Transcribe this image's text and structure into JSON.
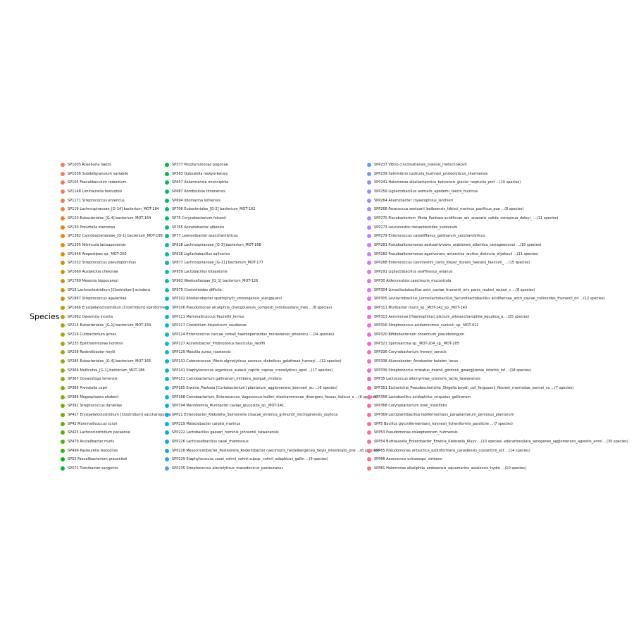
{
  "chart_data": {
    "type": "scatter",
    "legend": {
      "title": "Species",
      "placement": "left",
      "palette": {
        "type": "hue",
        "h": [
          15,
          375
        ],
        "c": 100,
        "l": 65
      },
      "columns": [
        [
          "SP1005 Roseburia faecis",
          "SP1036 Subdoligranulum variabile",
          "SP105 Faecalibaculum rodentium",
          "SP1148 Limihaurella testudinis",
          "SP1171 Streptococcus entericus",
          "SP119 Lachnospiraceae_[G-14] bacterium_MOT-184",
          "SP120 Eubacteriales_[G-4] bacterium_MOT-164",
          "SP130 Prevotella stercorea",
          "SP1382 Carnobacteriaceae_[G-1] bacterium_MOT-198",
          "SP1395 Nitrincola lacisaponensis",
          "SP1446 Atopostipes sp._MOT-200",
          "SP1532 Streptococcus pseudoporcinus",
          "SP1660 Austwickia chelonae",
          "SP1789 Mesonia hippocampi",
          "SP18 Lachnoclostridium [Clostridium] scindens",
          "SP1887 Streptococcus agalactiae",
          "SP1966 Erysipelatoclostridium [Clostridium] spiroforme",
          "SP1982 Desemzia incerta",
          "SP215 Eubacteriales_[G-1] bacterium_MOT-159",
          "SP216 Cutibacterium acnes",
          "SP233 Epilithonimonas hominis",
          "SP238 Rodentibacter heylii",
          "SP285 Eubacteriales_[G-4] bacterium_MOT-165",
          "SP366 Mollicutes_[G-1] bacterium_MOT-186",
          "SP367 Oceanotoga teriensis",
          "SP385 Prevotella copri",
          "SP386 Megasphaera elsdenii",
          "SP391 Streptococcus danieliae",
          "SP417 Erysipelatoclostridium [Clostridium] saccharogumia",
          "SP42 Mammaliicoccus sciuri",
          "SP425 Lachnoclostridium pacaense",
          "SP479 Acutalibacter muris",
          "SP496 Pasteurella testudinis",
          "SP52 Faecalibacterium prausnitzii",
          "SP572 Turicibacter sanguinis"
        ],
        [
          "SP577 Porphyromonas pogonae",
          "SP583 Dubosiella newyorkensis",
          "SP657 Akkermansia muciniphila",
          "SP687 Romboutsia timonensis",
          "SP694 Idiomarina loihiensis",
          "SP706 Eubacteriales_[G-2] bacterium_MOT-162",
          "SP75 Corynebacterium falsenii",
          "SP765 Acinetobacter albensis",
          "SP77 Lawsonibacter asaccharolyticus",
          "SP818 Lachnospiraceae_[G-3] bacterium_MOT-168",
          "SP826 Ligilactobacillus salivarius",
          "SP877 Lachnospiraceae_[G-11] bacterium_MOT-177",
          "SP959 Lactobacillus kitasatonis",
          "SP963 Weeksellaceae_[G_1] bacterium_MOT-126",
          "SP975 Clostridioides difficile",
          "SPP102 Rhodanobacter spathiphylli_umsongensis_xiangquanii",
          "SPP106 Pseudomonas alcaliphila_chengduensis_composti_indoloxydans_men ...(8 species)",
          "SPP111 Mammaliicoccus fleurettii_lentus",
          "SPP117 Clostridium disporicum_saudiense",
          "SPP124 Enterococcus caccae_crotali_haemoperoxidus_moraviensis_phoenicu ...(14 species)",
          "SPP127 Acinetobacter_Prolinoborus fasciculus_lwoffii",
          "SPP129 Massilia aurea_niastensis",
          "SPP131 Catenococcus_Vibrio alginolyticus_azureus_diabolicus_galatheae_harveyi ...(12 species)",
          "SPP141 Staphylococcus argenteus_aureus_capitis_caprae_croceilyticus_epid ...(17 species)",
          "SPP151 Carnobacterium gallinarum_inhibens_jeotgali_viridans",
          "SPP165 Erwinia_Pantoea [Curtobacterium] plantarum_agglomerans_brenneri_eu ...(6 species)",
          "SPP168 Carnobacterium_Enterococcus_Vagococcus bulleri_diestrammenae_divergens_fessus_italicus_s ...(6 species)",
          "SPP194 Mannheimia_Muribacter caviae_glucosida_sp._MOT-141",
          "SPP21 Enterobacter_Klebsiella_Salmonella cloacae_enterica_grimontii_michiganensis_oxytoca",
          "SPP219 Malaciobacter canalis_marinus",
          "SPP222 Lactobacillus gasseri_hominis_johnsonii_taiwanensis",
          "SPP226 Lacticaseibacillus casei_rhamnosus",
          "SPP228 Mesocricetibacter_Pasteurella_Rodentibacter caecimuris_heidelbergensis_heylii_intestinalis_pne ...(6 species)",
          "SPP229 Staphylococcus casei_cohnii_cohnii subsp._cohnii_edaphicus_gallin ...(9 species)",
          "SPP235 Streptococcus alactolyticus_macedonicus_pasteuranus"
        ],
        [
          "SPP237 Vibrio cincinnatiensis_injensis_metschnikovii",
          "SPP239 Salinivibrio costicola_kushneri_proteolyticus_sharmensis",
          "SPP241 Halomonas alkaliantarctica_bolviensis_glaciei_neptunia_prof ...(10 species)",
          "SPP259 Ligilactobacillus animalis_apodemi_faecis_murinus",
          "SPP264 Aliarcobacter cryaerophilus_lanthieri",
          "SPP268 Paracoccus aestuarii_beibuensis_hibisci_marinus_pacificus_pue ...(8 species)",
          "SPP270 Flavobacterium_Mixta_Pantoea acidificum_ani_ananatis_calida_conspicua_deleyi_ ...(11 species)",
          "SPP273 Leuconostoc mesenteroides_suionicum",
          "SPP279 Enterococcus casseliflavus_gallinarum_saccharolyticus",
          "SPP281 Pseudoalteromonas aestuariivivens_arabiensis_atlantica_carrageenovor ...(19 species)",
          "SPP282 Pseudoalteromonas agarivorans_antarctica_arctica_distincta_elyakovii ...(11 species)",
          "SPP288 Enterococcus canintestini_canis_dispar_durans_faecalis_faecium_ ...(15 species)",
          "SPP291 Ligilactobacillus araffinosus_avianus",
          "SPP30 Adlercreutzia caecimuris_mucosicola",
          "SPP304 Limosilactobacillus antri_caviae_frumenti_oris_panis_reuteri_reuteri_c ...(8 species)",
          "SPP305 Levilactobacillus_Limosilactobacillus_Secundilactobacillus acidifarinae_antri_caviae_collinoides_frumenti_ori ...(12 species)",
          "SPP311 Muribacter muris_sp._MOT-142_sp._MOT-143",
          "SPP313 Aeromonas [Haemophilus] piscium_allosaccharophila_aquatica_a ...(25 species)",
          "SPP316 Streptococcus acidominimus_cuniculi_sp._MOT-012",
          "SPP320 Bifidobacterium choerinum_pseudolongum",
          "SPP321 Sporosarcina sp._MOT-204_sp._MOT-205",
          "SPP336 Corynebacterium freneyi_xerosis",
          "SPP338 Aliarcobacter_Arcobacter butzleri_lacus",
          "SPP339 Streptococcus cristatus_downii_gordonii_gwangjuense_infantis_inf ...(18 species)",
          "SPP35 Lactococcus allomyrinae_cremoris_lactis_taiwanensis",
          "SPP351 Escherichia_Pseudescherichia_Shigella boydii_coli_fergusonii_flexneri_marmotae_sonnei_vu ...(7 species)",
          "SPP358 Lactobacillus acidophilus_crispatus_gallinarum",
          "SPP368 Corynebacterium lowii_mastitidis",
          "SPP369 Lactiplantibacillus fabifermentans_paraplantarum_pentosus_plantarum",
          "SPP5 Bacillus glycinifermentans_haynesii_licheniformis_paraliche ...(7 species)",
          "SPP53 Pseudomonas coleopterorum_hutmensis",
          "SPP54 Buttiauxella_Enterobacter_Erwinia_Klebsiella_Kluyv ...(10 species) adecarboxylata_aerogenes_agglomerans_agrestis_amni ...(30 species)",
          "SPP65 Pseudomonas antarctica_azotoformans_canadensis_costantinii_ext ...(14 species)",
          "SPP66 Aerococcus urinaeequi_viridans",
          "SPP81 Halomonas alkaliphila_andesensis_aquamarina_axialensis_hydro ...(10 species)"
        ]
      ]
    }
  }
}
